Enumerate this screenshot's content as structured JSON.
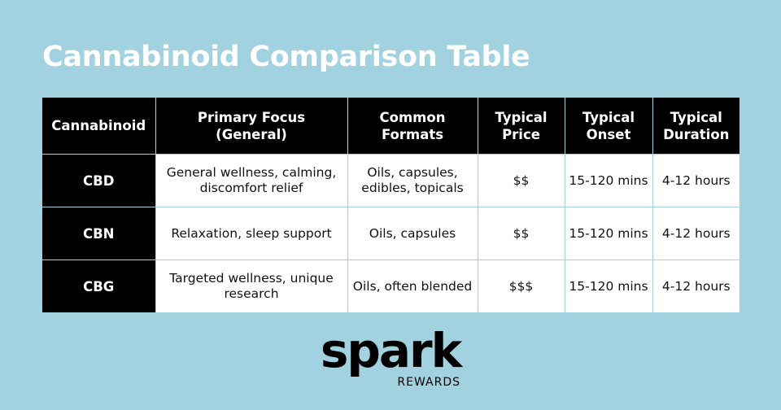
{
  "title": "Cannabinoid Comparison Table",
  "table": {
    "headers": [
      "Cannabinoid",
      "Primary Focus\n(General)",
      "Common\nFormats",
      "Typical\nPrice",
      "Typical\nOnset",
      "Typical\nDuration"
    ],
    "rows": [
      {
        "name": "CBD",
        "focus": "General wellness, calming, discomfort relief",
        "formats": "Oils, capsules, edibles, topicals",
        "price": "$$",
        "onset": "15-120 mins",
        "duration": "4-12 hours"
      },
      {
        "name": "CBN",
        "focus": "Relaxation, sleep support",
        "formats": "Oils, capsules",
        "price": "$$",
        "onset": "15-120 mins",
        "duration": "4-12 hours"
      },
      {
        "name": "CBG",
        "focus": "Targeted wellness, unique research",
        "formats": "Oils, often blended",
        "price": "$$$",
        "onset": "15-120 mins",
        "duration": "4-12 hours"
      }
    ]
  },
  "logo": {
    "word": "spark",
    "sub": "REWARDS"
  }
}
